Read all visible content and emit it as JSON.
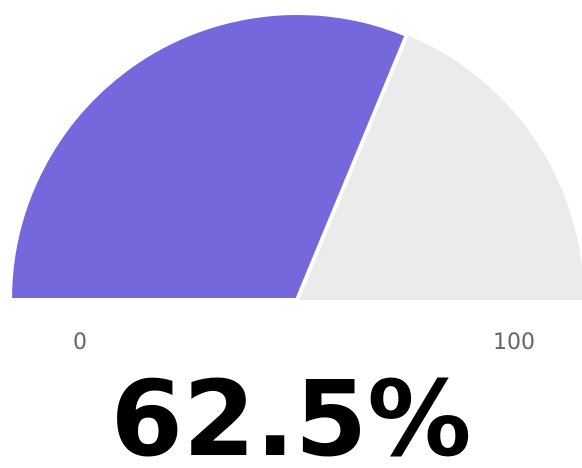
{
  "chart_data": {
    "type": "gauge",
    "values": [
      62.5
    ],
    "value_labels": [
      "62.5%"
    ],
    "ylim": [
      0,
      100
    ],
    "yticks": [
      0,
      100
    ],
    "color": "#7468dc",
    "track_color": "#ebebeb"
  }
}
